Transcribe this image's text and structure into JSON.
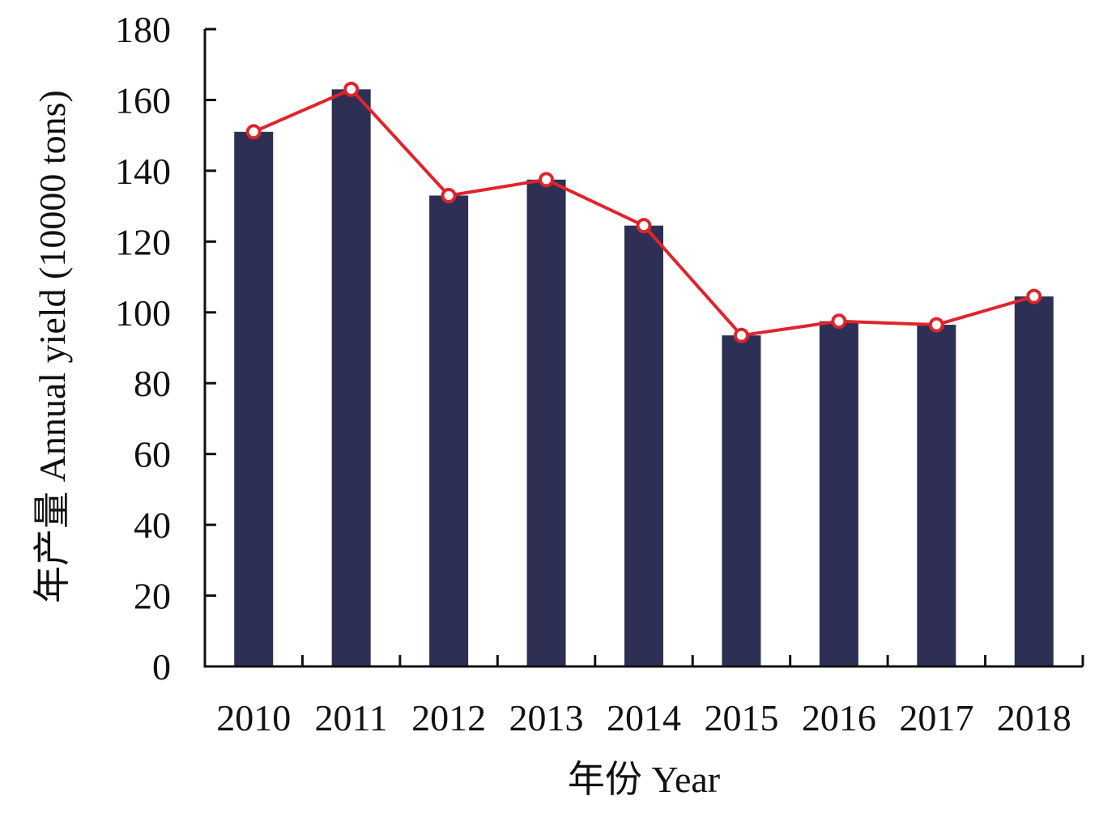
{
  "chart_data": {
    "type": "bar",
    "title": "",
    "xlabel": "年份 Year",
    "ylabel": "年产量 Annual yield (10000 tons)",
    "categories": [
      "2010",
      "2011",
      "2012",
      "2013",
      "2014",
      "2015",
      "2016",
      "2017",
      "2018"
    ],
    "series": [
      {
        "values": [
          151,
          163,
          133,
          137.5,
          124.5,
          93.5,
          97.5,
          96.5,
          104.5
        ]
      }
    ],
    "line_values": [
      151,
      163,
      133,
      137.5,
      124.5,
      93.5,
      97.5,
      96.5,
      104.5
    ],
    "yticks": [
      "0",
      "20",
      "40",
      "60",
      "80",
      "100",
      "120",
      "140",
      "160",
      "180"
    ],
    "ylim": [
      0,
      180
    ],
    "grid": false,
    "legend": "none",
    "colors": {
      "bar": "#2d3054",
      "line": "#e0242c",
      "marker_fill": "#ffffff",
      "axis": "#111111"
    }
  }
}
